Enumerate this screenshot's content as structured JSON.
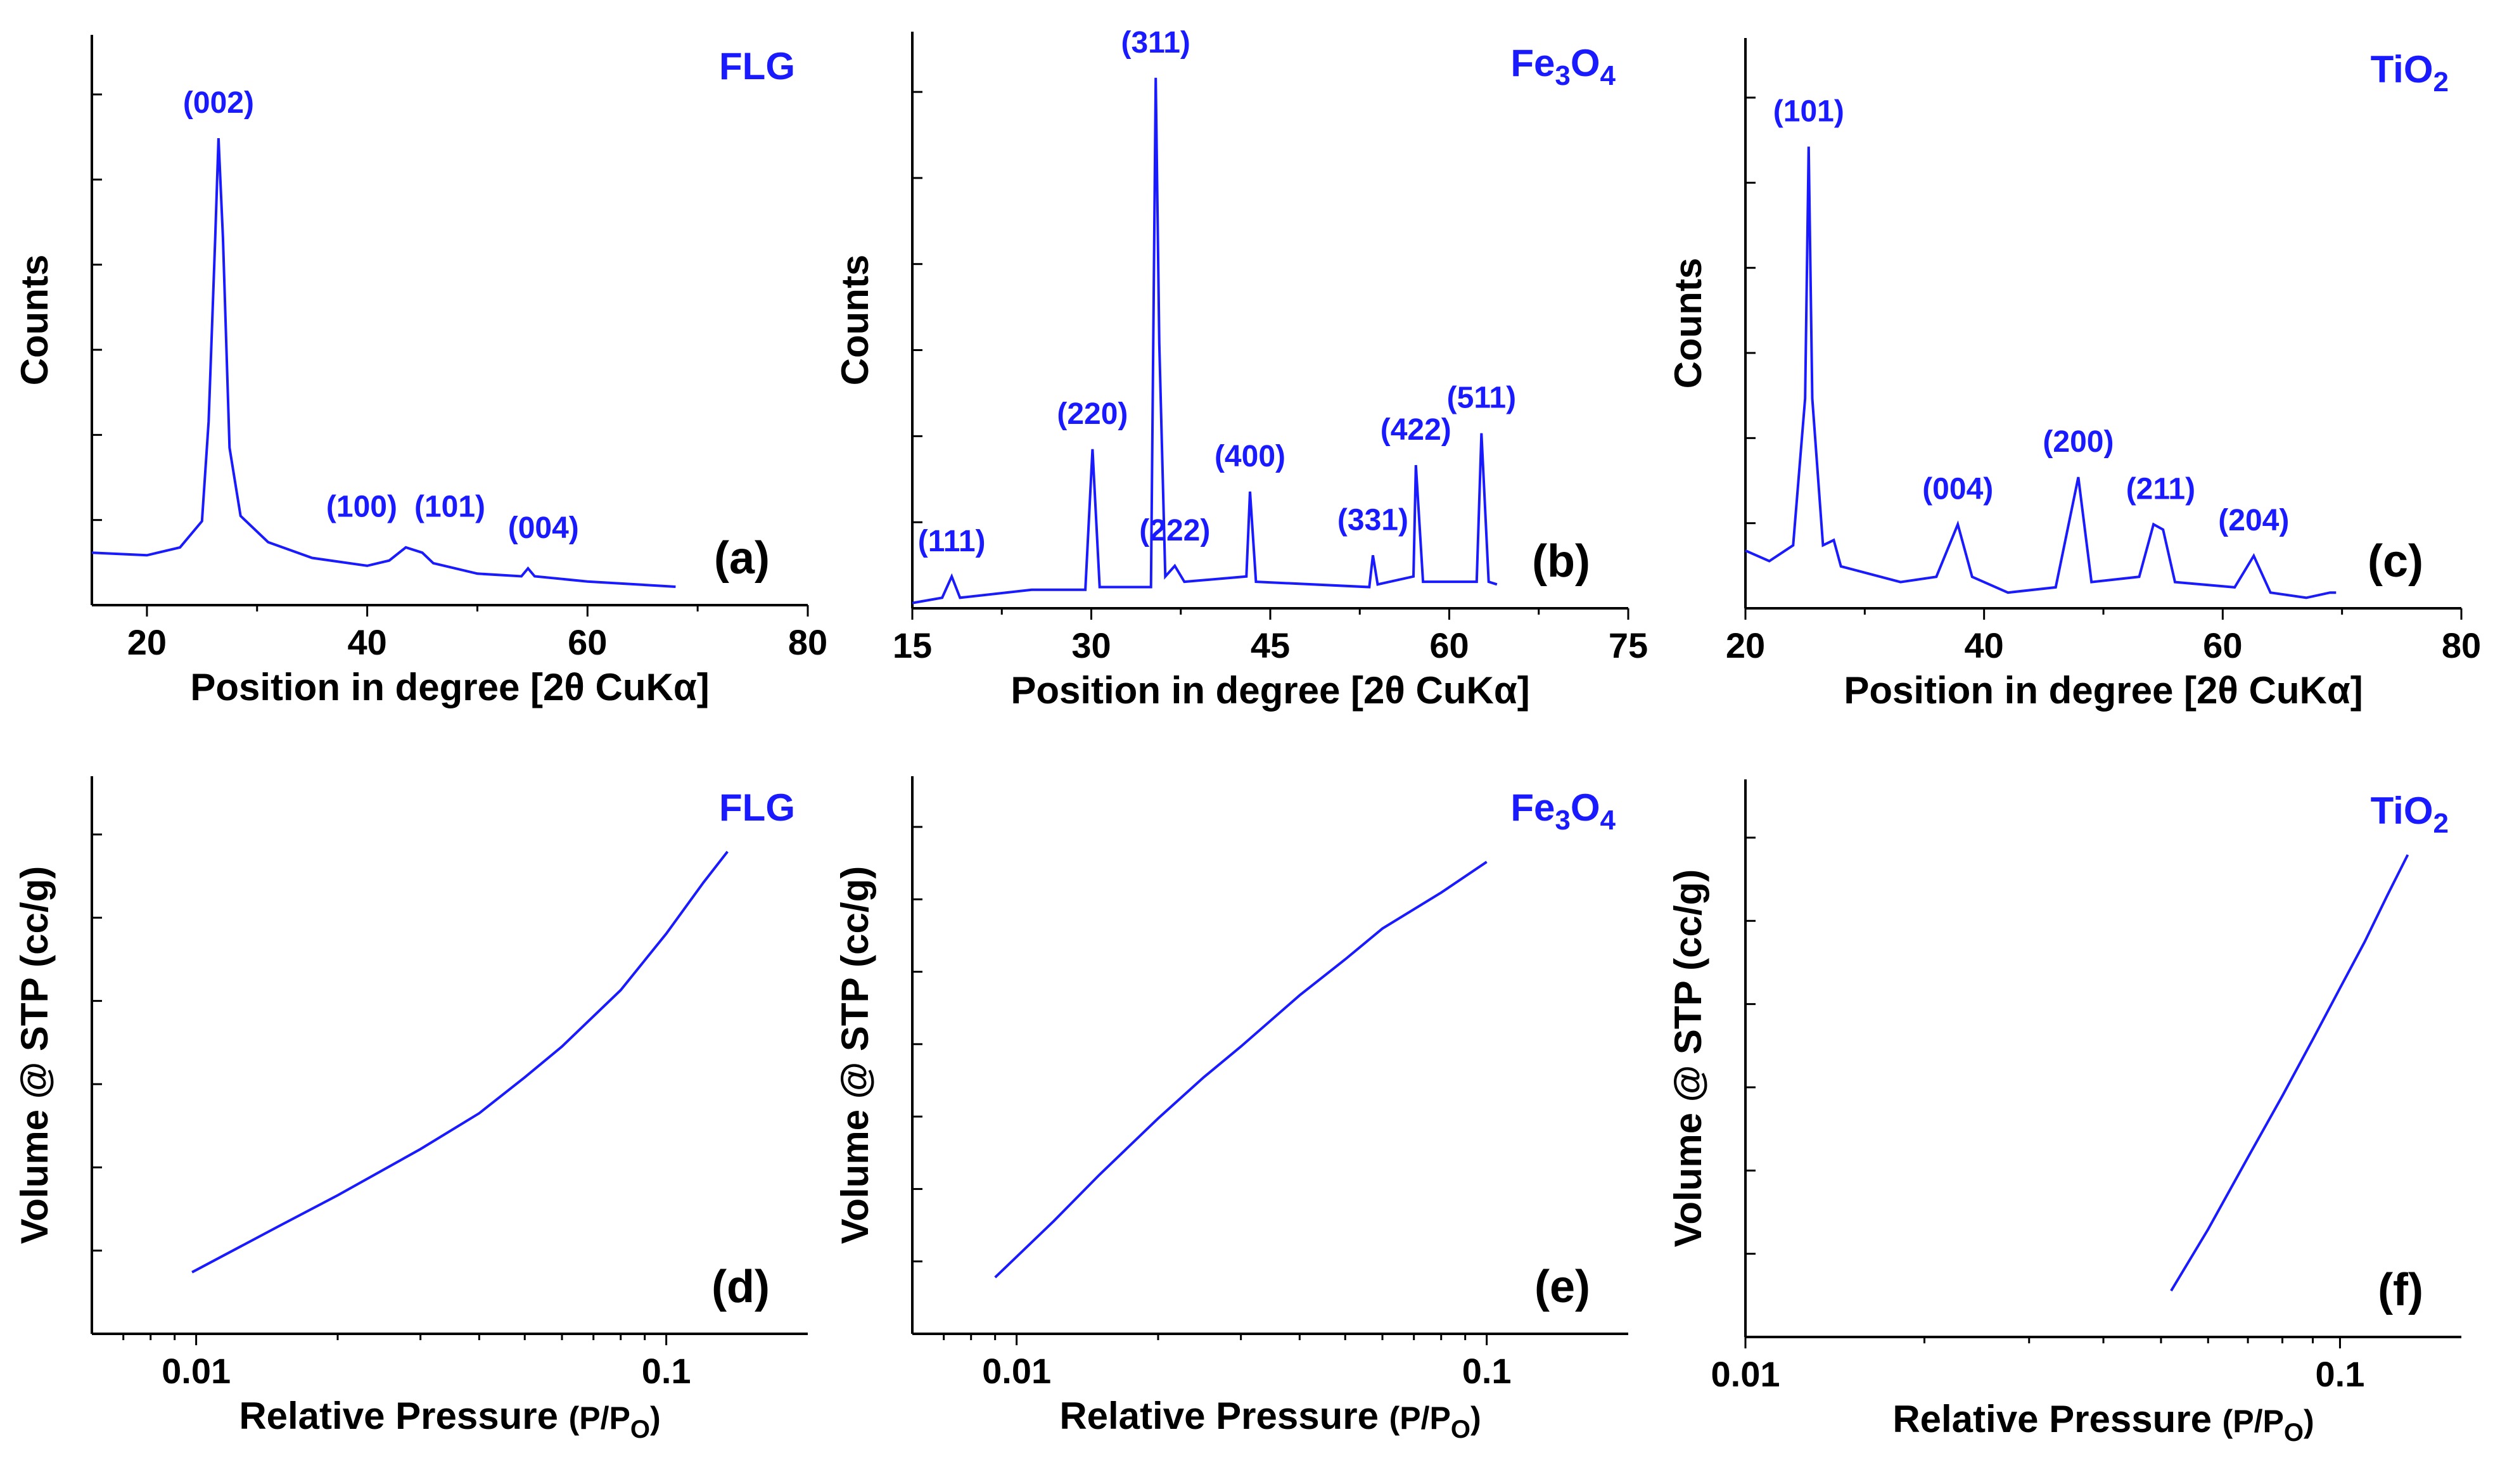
{
  "figure": {
    "colors": {
      "series": "#1a1aff",
      "axis": "#000000"
    }
  },
  "chart_data": [
    {
      "id": "a",
      "type": "line",
      "title": "",
      "sample": "FLG",
      "sample_sub": "",
      "panel_label": "(a)",
      "xlabel": "Position in degree [2θ CuKα]",
      "ylabel": "Counts",
      "xscale": "linear",
      "xlim": [
        15,
        80
      ],
      "ylim": [
        0,
        100
      ],
      "xticks": [
        20,
        40,
        60,
        80
      ],
      "xtick_labels": [
        "20",
        "40",
        "60",
        "80"
      ],
      "yticks_minor": 6,
      "baseline": [
        [
          15,
          10
        ],
        [
          20,
          9.5
        ],
        [
          23,
          11
        ],
        [
          25,
          16
        ],
        [
          25.6,
          35
        ],
        [
          26.2,
          70
        ],
        [
          26.5,
          89
        ],
        [
          26.9,
          70
        ],
        [
          27.5,
          30
        ],
        [
          28.5,
          17
        ],
        [
          31,
          12
        ],
        [
          35,
          9
        ],
        [
          40,
          7.5
        ],
        [
          42,
          8.5
        ],
        [
          43.5,
          11
        ],
        [
          45,
          10
        ],
        [
          46,
          8
        ],
        [
          50,
          6
        ],
        [
          54,
          5.5
        ],
        [
          54.6,
          7
        ],
        [
          55.2,
          5.5
        ],
        [
          60,
          4.5
        ],
        [
          68,
          3.5
        ]
      ],
      "peaks": [
        {
          "hkl": "(002)",
          "x": 26.5,
          "y": 89
        },
        {
          "hkl": "(100)",
          "x": 39.5,
          "y": 12
        },
        {
          "hkl": "(101)",
          "x": 47.5,
          "y": 12
        },
        {
          "hkl": "(004)",
          "x": 56,
          "y": 8
        }
      ]
    },
    {
      "id": "b",
      "type": "line",
      "title": "",
      "sample": "Fe",
      "sample_sub": "3",
      "sample_tail": "O",
      "sample_sub2": "4",
      "panel_label": "(b)",
      "xlabel": "Position in degree [2θ CuKα]",
      "ylabel": "Counts",
      "xscale": "linear",
      "xlim": [
        15,
        75
      ],
      "ylim": [
        0,
        100
      ],
      "xticks": [
        15,
        30,
        45,
        60,
        75
      ],
      "xtick_labels": [
        "15",
        "30",
        "45",
        "60",
        "75"
      ],
      "yticks_minor": 6,
      "baseline": [
        [
          15,
          1
        ],
        [
          17.5,
          2
        ],
        [
          18.3,
          6
        ],
        [
          19,
          2
        ],
        [
          25,
          3.5
        ],
        [
          29.5,
          3.5
        ],
        [
          30.1,
          30
        ],
        [
          30.7,
          4
        ],
        [
          35,
          4
        ],
        [
          35.4,
          100
        ],
        [
          35.7,
          50
        ],
        [
          36.2,
          6
        ],
        [
          37,
          8
        ],
        [
          37.8,
          5
        ],
        [
          43,
          6
        ],
        [
          43.3,
          22
        ],
        [
          43.8,
          5
        ],
        [
          53.3,
          4
        ],
        [
          53.6,
          10
        ],
        [
          54,
          4.5
        ],
        [
          57,
          6
        ],
        [
          57.2,
          27
        ],
        [
          57.8,
          5
        ],
        [
          62.3,
          5
        ],
        [
          62.7,
          33
        ],
        [
          63.3,
          5
        ],
        [
          64,
          4.5
        ]
      ],
      "peaks": [
        {
          "hkl": "(111)",
          "x": 18.3,
          "y": 6
        },
        {
          "hkl": "(220)",
          "x": 30.1,
          "y": 30
        },
        {
          "hkl": "(311)",
          "x": 35.4,
          "y": 100
        },
        {
          "hkl": "(222)",
          "x": 37,
          "y": 8
        },
        {
          "hkl": "(400)",
          "x": 43.3,
          "y": 22
        },
        {
          "hkl": "(331)",
          "x": 53.6,
          "y": 10
        },
        {
          "hkl": "(422)",
          "x": 57.2,
          "y": 27
        },
        {
          "hkl": "(511)",
          "x": 62.7,
          "y": 33
        }
      ]
    },
    {
      "id": "c",
      "type": "line",
      "title": "",
      "sample": "TiO",
      "sample_sub": "2",
      "panel_label": "(c)",
      "xlabel": "Position in degree [2θ CuKα]",
      "ylabel": "Counts",
      "xscale": "linear",
      "xlim": [
        20,
        80
      ],
      "ylim": [
        0,
        100
      ],
      "xticks": [
        20,
        40,
        60,
        80
      ],
      "xtick_labels": [
        "20",
        "40",
        "60",
        "80"
      ],
      "yticks_minor": 6,
      "baseline": [
        [
          20,
          11
        ],
        [
          22,
          9
        ],
        [
          24,
          12
        ],
        [
          25,
          40
        ],
        [
          25.3,
          88
        ],
        [
          25.6,
          40
        ],
        [
          26.5,
          12
        ],
        [
          27.4,
          13
        ],
        [
          28,
          8
        ],
        [
          33,
          5
        ],
        [
          36,
          6
        ],
        [
          37.8,
          16
        ],
        [
          39,
          6
        ],
        [
          42,
          3
        ],
        [
          46,
          4
        ],
        [
          47.9,
          25
        ],
        [
          49,
          5
        ],
        [
          53,
          6
        ],
        [
          54.2,
          16
        ],
        [
          55,
          15
        ],
        [
          56,
          5
        ],
        [
          61,
          4
        ],
        [
          62.6,
          10
        ],
        [
          64,
          3
        ],
        [
          67,
          2
        ],
        [
          69,
          3
        ],
        [
          69.5,
          3
        ]
      ],
      "peaks": [
        {
          "hkl": "(101)",
          "x": 25.3,
          "y": 88
        },
        {
          "hkl": "(004)",
          "x": 37.8,
          "y": 16
        },
        {
          "hkl": "(200)",
          "x": 47.9,
          "y": 25
        },
        {
          "hkl": "(211)",
          "x": 54.8,
          "y": 16
        },
        {
          "hkl": "(204)",
          "x": 62.6,
          "y": 10
        }
      ]
    },
    {
      "id": "d",
      "type": "line",
      "title": "",
      "sample": "FLG",
      "sample_sub": "",
      "panel_label": "(d)",
      "xlabel": "Relative Pressure",
      "xlabel_tail": "(P/P",
      "xlabel_sub": "O",
      "xlabel_close": ")",
      "ylabel": "Volume @ STP (cc/g)",
      "xscale": "log",
      "xlim": [
        0.006,
        0.2
      ],
      "ylim": [
        0,
        100
      ],
      "xticks": [
        0.01,
        0.1
      ],
      "xtick_labels": [
        "0.01",
        "0.1"
      ],
      "yticks_minor": 6,
      "series": [
        {
          "name": "FLG isotherm",
          "x": [
            0.0098,
            0.015,
            0.02,
            0.03,
            0.04,
            0.05,
            0.06,
            0.08,
            0.1,
            0.12,
            0.135
          ],
          "y": [
            12,
            21,
            27,
            36,
            43,
            50,
            56,
            67,
            78,
            88,
            94
          ]
        }
      ]
    },
    {
      "id": "e",
      "type": "line",
      "title": "",
      "sample": "Fe",
      "sample_sub": "3",
      "sample_tail": "O",
      "sample_sub2": "4",
      "panel_label": "(e)",
      "xlabel": "Relative Pressure",
      "xlabel_tail": "(P/P",
      "xlabel_sub": "O",
      "xlabel_close": ")",
      "ylabel": "Volume @ STP (cc/g)",
      "xscale": "log",
      "xlim": [
        0.006,
        0.2
      ],
      "ylim": [
        0,
        100
      ],
      "xticks": [
        0.01,
        0.1
      ],
      "xtick_labels": [
        "0.01",
        "0.1"
      ],
      "yticks_minor": 7,
      "series": [
        {
          "name": "Fe3O4 isotherm",
          "x": [
            0.009,
            0.012,
            0.015,
            0.02,
            0.025,
            0.03,
            0.04,
            0.05,
            0.06,
            0.08,
            0.1
          ],
          "y": [
            11,
            22,
            31,
            42,
            50,
            56,
            66,
            73,
            79,
            86,
            92
          ]
        }
      ]
    },
    {
      "id": "f",
      "type": "line",
      "title": "",
      "sample": "TiO",
      "sample_sub": "2",
      "panel_label": "(f)",
      "xlabel": "Relative Pressure",
      "xlabel_tail": "(P/P",
      "xlabel_sub": "O",
      "xlabel_close": ")",
      "ylabel": "Volume @ STP (cc/g)",
      "xscale": "log",
      "xlim": [
        0.01,
        0.16
      ],
      "ylim": [
        0,
        100
      ],
      "xticks": [
        0.01,
        0.1
      ],
      "xtick_labels": [
        "0.01",
        "0.1"
      ],
      "yticks_minor": 6,
      "series": [
        {
          "name": "TiO2 isotherm",
          "x": [
            0.052,
            0.06,
            0.07,
            0.08,
            0.09,
            0.1,
            0.11,
            0.12,
            0.13
          ],
          "y": [
            9,
            21,
            35,
            47,
            58,
            68,
            77,
            86,
            94
          ]
        }
      ]
    }
  ]
}
